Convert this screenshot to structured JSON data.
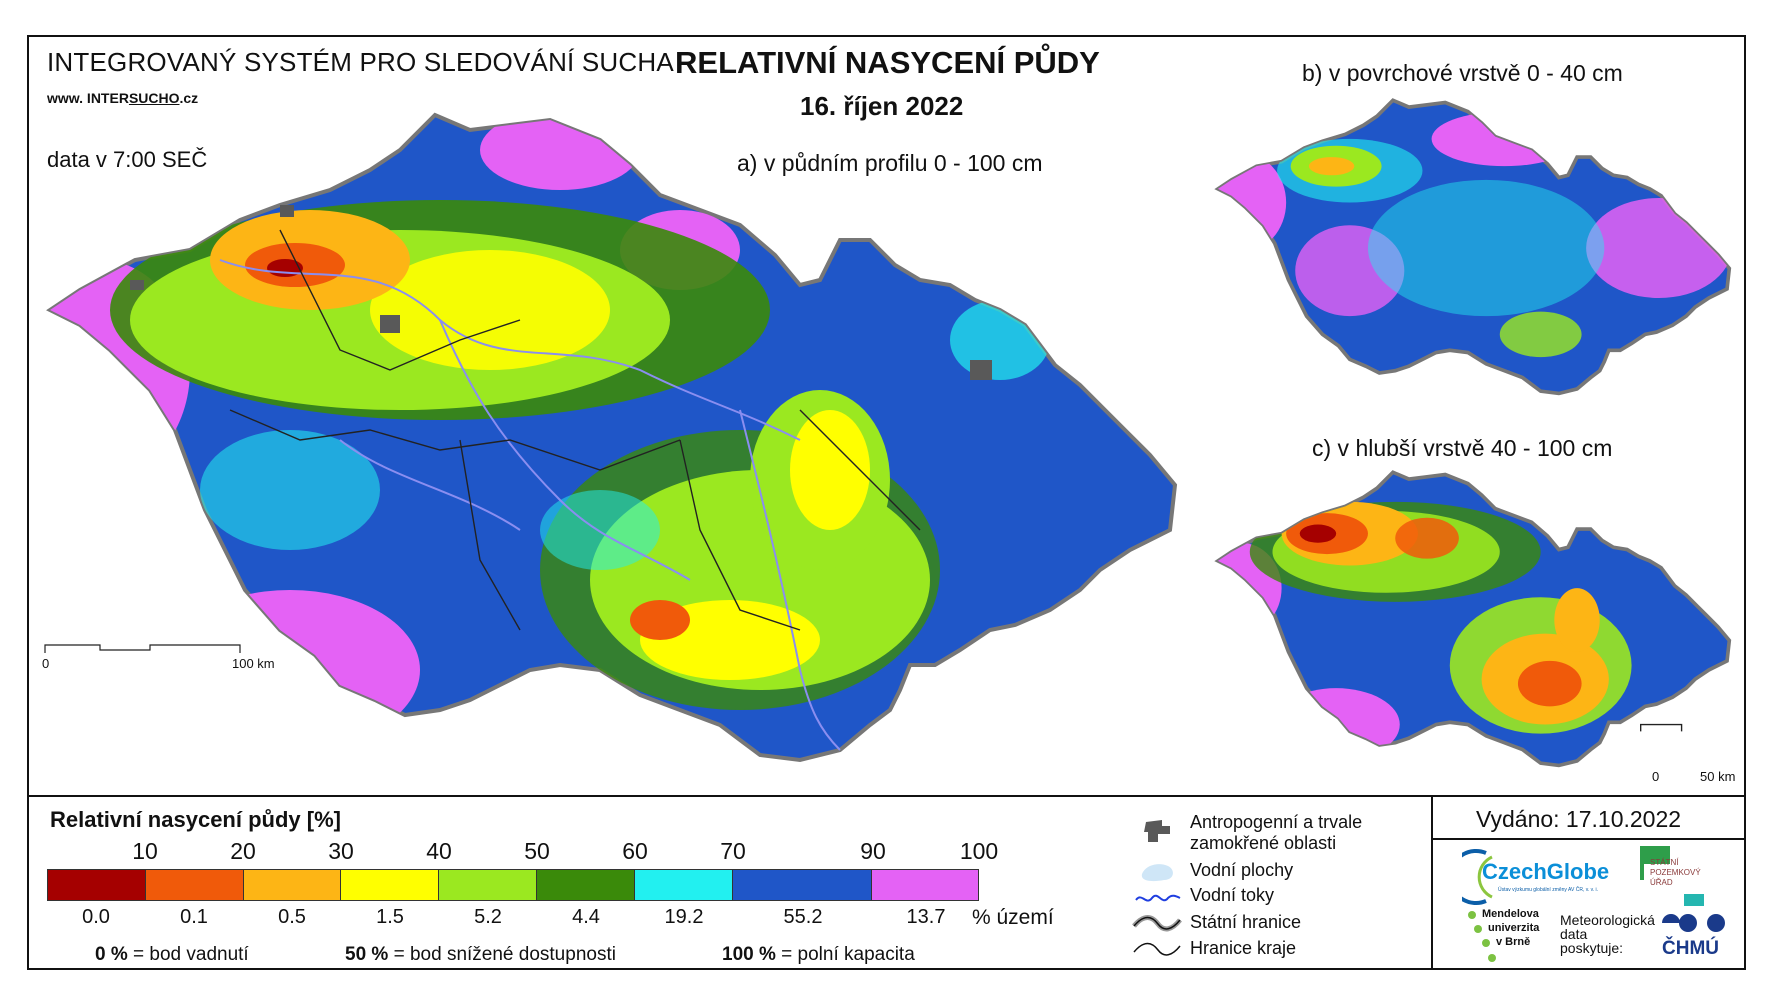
{
  "header": {
    "system_title": "INTEGROVANÝ SYSTÉM PRO SLEDOVÁNÍ SUCHA",
    "website_prefix": "www. INTER",
    "website_underlined": "SUCHO",
    "website_suffix": ".cz",
    "data_time": "data v 7:00 SEČ",
    "main_title": "RELATIVNÍ NASYCENÍ PŮDY",
    "date": "16. říjen 2022"
  },
  "maps": {
    "a": {
      "label": "a) v půdním profilu 0 - 100 cm",
      "scale_start": "0",
      "scale_end": "100 km"
    },
    "b": {
      "label": "b) v povrchové vrstvě 0 - 40 cm"
    },
    "c": {
      "label": "c) v hlubší vrstvě 40 - 100 cm",
      "scale_start": "0",
      "scale_end": "50 km"
    }
  },
  "legend": {
    "title": "Relativní nasycení půdy [%]",
    "ticks": [
      "10",
      "20",
      "30",
      "40",
      "50",
      "60",
      "70",
      "90",
      "100"
    ],
    "classes": [
      {
        "color": "#a50000",
        "pct": "0.0"
      },
      {
        "color": "#f05a0a",
        "pct": "0.1"
      },
      {
        "color": "#fdb515",
        "pct": "0.5"
      },
      {
        "color": "#ffff00",
        "pct": "1.5"
      },
      {
        "color": "#9be820",
        "pct": "5.2"
      },
      {
        "color": "#3a8a0a",
        "pct": "4.4"
      },
      {
        "color": "#22f0f0",
        "pct": "19.2"
      },
      {
        "color": "#1f56c8",
        "pct": "55.2"
      },
      {
        "color": "#e462f5",
        "pct": "13.7"
      }
    ],
    "pct_unit": "% území",
    "notes": [
      {
        "value": "0 %",
        "text": "= bod vadnutí"
      },
      {
        "value": "50 %",
        "text": "= bod snížené dostupnosti"
      },
      {
        "value": "100 %",
        "text": "= polní kapacita"
      }
    ]
  },
  "symbols": {
    "anthropogenic_1": "Antropogenní a trvale",
    "anthropogenic_2": "zamokřené oblasti",
    "water_bodies": "Vodní plochy",
    "rivers": "Vodní toky",
    "state_border": "Státní hranice",
    "region_border": "Hranice kraje"
  },
  "issued": "Vydáno: 17.10.2022",
  "logos": {
    "czechglobe": "CzechGlobe",
    "czechglobe_sub": "Ústav výzkumu globální změny AV ČR, v. v. i.",
    "spu_1": "STÁTNÍ",
    "spu_2": "POZEMKOVÝ",
    "spu_3": "ÚŘAD",
    "mendelu_1": "Mendelova",
    "mendelu_2": "univerzita",
    "mendelu_3": "v Brně",
    "met_1": "Meteorologická",
    "met_2": "data",
    "met_3": "poskytuje:",
    "chmu": "ČHMÚ"
  }
}
